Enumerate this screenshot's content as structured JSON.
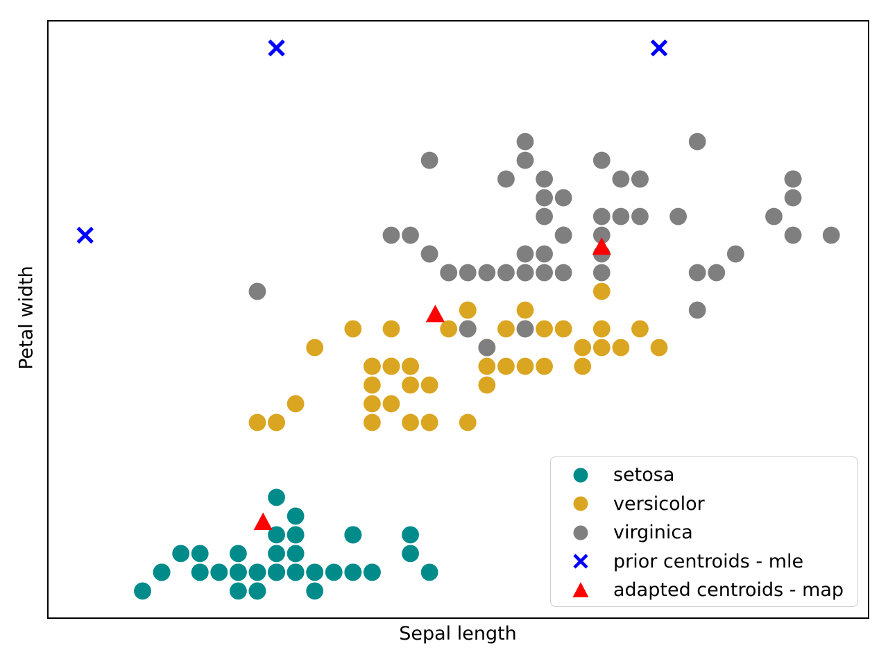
{
  "figure": {
    "background": "#ffffff",
    "spine_color": "#000000"
  },
  "legend": {
    "items": [
      {
        "label": "setosa",
        "marker": "circle",
        "color": "#008B8B"
      },
      {
        "label": "versicolor",
        "marker": "circle",
        "color": "#DAA520"
      },
      {
        "label": "virginica",
        "marker": "circle",
        "color": "#7F7F7F"
      },
      {
        "label": "prior centroids - mle",
        "marker": "x",
        "color": "#0000FF"
      },
      {
        "label": "adapted centroids - map",
        "marker": "triangle_up",
        "color": "#FF0000"
      }
    ]
  },
  "chart_data": {
    "type": "scatter",
    "title": "",
    "xlabel": "Sepal length",
    "ylabel": "Petal width",
    "xlim": [
      3.805,
      8.095
    ],
    "ylim": [
      -0.045,
      3.145
    ],
    "grid": false,
    "ticks": "none",
    "legend_position": "lower right",
    "series": [
      {
        "name": "setosa",
        "marker": "circle",
        "color": "#008B8B",
        "points": [
          [
            5.1,
            0.2
          ],
          [
            4.9,
            0.2
          ],
          [
            4.7,
            0.2
          ],
          [
            4.6,
            0.2
          ],
          [
            5.0,
            0.2
          ],
          [
            5.4,
            0.4
          ],
          [
            4.6,
            0.3
          ],
          [
            5.0,
            0.2
          ],
          [
            4.4,
            0.2
          ],
          [
            4.9,
            0.1
          ],
          [
            5.4,
            0.2
          ],
          [
            4.8,
            0.2
          ],
          [
            4.8,
            0.1
          ],
          [
            4.3,
            0.1
          ],
          [
            5.8,
            0.2
          ],
          [
            5.7,
            0.4
          ],
          [
            5.4,
            0.4
          ],
          [
            5.1,
            0.3
          ],
          [
            5.7,
            0.3
          ],
          [
            5.1,
            0.3
          ],
          [
            5.4,
            0.2
          ],
          [
            5.1,
            0.4
          ],
          [
            4.6,
            0.2
          ],
          [
            5.1,
            0.5
          ],
          [
            4.8,
            0.2
          ],
          [
            5.0,
            0.2
          ],
          [
            5.0,
            0.4
          ],
          [
            5.2,
            0.2
          ],
          [
            5.2,
            0.2
          ],
          [
            4.7,
            0.2
          ],
          [
            4.8,
            0.2
          ],
          [
            5.4,
            0.4
          ],
          [
            5.2,
            0.1
          ],
          [
            5.5,
            0.2
          ],
          [
            4.9,
            0.2
          ],
          [
            5.0,
            0.2
          ],
          [
            5.5,
            0.2
          ],
          [
            4.9,
            0.1
          ],
          [
            4.4,
            0.2
          ],
          [
            5.1,
            0.2
          ],
          [
            5.0,
            0.3
          ],
          [
            4.5,
            0.3
          ],
          [
            4.4,
            0.2
          ],
          [
            5.0,
            0.6
          ],
          [
            5.1,
            0.4
          ],
          [
            4.8,
            0.3
          ],
          [
            5.1,
            0.2
          ],
          [
            4.6,
            0.2
          ],
          [
            5.3,
            0.2
          ],
          [
            5.0,
            0.2
          ]
        ]
      },
      {
        "name": "versicolor",
        "marker": "circle",
        "color": "#DAA520",
        "points": [
          [
            7.0,
            1.4
          ],
          [
            6.4,
            1.5
          ],
          [
            6.9,
            1.5
          ],
          [
            5.5,
            1.3
          ],
          [
            6.5,
            1.5
          ],
          [
            5.7,
            1.3
          ],
          [
            6.3,
            1.6
          ],
          [
            4.9,
            1.0
          ],
          [
            6.6,
            1.3
          ],
          [
            5.2,
            1.4
          ],
          [
            5.0,
            1.0
          ],
          [
            5.9,
            1.5
          ],
          [
            6.0,
            1.0
          ],
          [
            6.1,
            1.4
          ],
          [
            5.6,
            1.3
          ],
          [
            6.7,
            1.4
          ],
          [
            5.6,
            1.5
          ],
          [
            5.8,
            1.0
          ],
          [
            6.2,
            1.5
          ],
          [
            5.6,
            1.1
          ],
          [
            5.9,
            1.8
          ],
          [
            6.1,
            1.3
          ],
          [
            6.3,
            1.5
          ],
          [
            6.1,
            1.2
          ],
          [
            6.4,
            1.3
          ],
          [
            6.6,
            1.4
          ],
          [
            6.8,
            1.4
          ],
          [
            6.7,
            1.7
          ],
          [
            6.0,
            1.5
          ],
          [
            5.7,
            1.0
          ],
          [
            5.5,
            1.1
          ],
          [
            5.5,
            1.0
          ],
          [
            5.8,
            1.2
          ],
          [
            6.0,
            1.6
          ],
          [
            5.4,
            1.5
          ],
          [
            6.0,
            1.6
          ],
          [
            6.7,
            1.5
          ],
          [
            6.3,
            1.3
          ],
          [
            5.6,
            1.3
          ],
          [
            5.5,
            1.3
          ],
          [
            5.5,
            1.2
          ],
          [
            6.1,
            1.4
          ],
          [
            5.8,
            1.0
          ],
          [
            5.0,
            1.0
          ],
          [
            5.6,
            1.3
          ],
          [
            5.7,
            1.2
          ],
          [
            5.7,
            1.3
          ],
          [
            6.2,
            1.3
          ],
          [
            5.1,
            1.1
          ],
          [
            5.7,
            1.3
          ]
        ]
      },
      {
        "name": "virginica",
        "marker": "circle",
        "color": "#7F7F7F",
        "points": [
          [
            6.3,
            2.5
          ],
          [
            5.8,
            1.9
          ],
          [
            7.1,
            2.1
          ],
          [
            6.3,
            1.8
          ],
          [
            6.5,
            2.2
          ],
          [
            7.6,
            2.1
          ],
          [
            4.9,
            1.7
          ],
          [
            7.3,
            1.8
          ],
          [
            6.7,
            1.8
          ],
          [
            7.2,
            2.5
          ],
          [
            6.5,
            2.0
          ],
          [
            6.4,
            1.9
          ],
          [
            6.8,
            2.1
          ],
          [
            5.7,
            2.0
          ],
          [
            5.8,
            2.4
          ],
          [
            6.4,
            2.3
          ],
          [
            6.5,
            1.8
          ],
          [
            7.7,
            2.2
          ],
          [
            7.7,
            2.3
          ],
          [
            6.0,
            1.5
          ],
          [
            6.9,
            2.3
          ],
          [
            5.6,
            2.0
          ],
          [
            7.7,
            2.0
          ],
          [
            6.3,
            1.8
          ],
          [
            6.7,
            2.1
          ],
          [
            7.2,
            1.8
          ],
          [
            6.2,
            1.8
          ],
          [
            6.1,
            1.8
          ],
          [
            6.4,
            2.1
          ],
          [
            7.2,
            1.6
          ],
          [
            7.4,
            1.9
          ],
          [
            7.9,
            2.0
          ],
          [
            6.4,
            2.2
          ],
          [
            6.3,
            1.5
          ],
          [
            6.1,
            1.4
          ],
          [
            7.7,
            2.3
          ],
          [
            6.3,
            2.4
          ],
          [
            6.4,
            1.8
          ],
          [
            6.0,
            1.8
          ],
          [
            6.9,
            2.1
          ],
          [
            6.7,
            2.4
          ],
          [
            6.9,
            2.3
          ],
          [
            5.8,
            1.9
          ],
          [
            6.8,
            2.3
          ],
          [
            6.7,
            1.9
          ],
          [
            6.7,
            2.0
          ],
          [
            6.3,
            1.9
          ],
          [
            6.5,
            2.0
          ],
          [
            6.2,
            2.3
          ],
          [
            5.9,
            1.8
          ]
        ]
      },
      {
        "name": "prior centroids - mle",
        "marker": "x",
        "color": "#0000FF",
        "points": [
          [
            4.0,
            2.0
          ],
          [
            5.0,
            3.0
          ],
          [
            7.0,
            3.0
          ]
        ]
      },
      {
        "name": "adapted centroids - map",
        "marker": "triangle_up",
        "color": "#FF0000",
        "points": [
          [
            4.93,
            0.47
          ],
          [
            5.83,
            1.58
          ],
          [
            6.7,
            1.94
          ]
        ]
      }
    ]
  }
}
